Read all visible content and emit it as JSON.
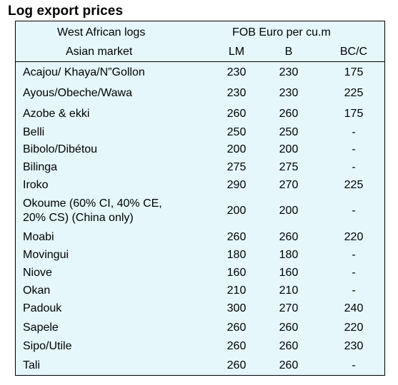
{
  "title": "Log export prices",
  "header": {
    "left_line1": "West African logs",
    "left_line2": "Asian market",
    "right_line1": "FOB Euro per cu.m",
    "col_lm": "LM",
    "col_b": "B",
    "col_bcc": "BC/C"
  },
  "rows": [
    {
      "name": "Acajou/ Khaya/N”Gollon",
      "lm": "230",
      "b": "230",
      "bcc": "175"
    },
    {
      "name": "Ayous/Obeche/Wawa",
      "lm": "230",
      "b": "230",
      "bcc": "225"
    },
    {
      "name": "Azobe & ekki",
      "lm": "260",
      "b": "260",
      "bcc": "175"
    },
    {
      "name": "Belli",
      "lm": "250",
      "b": "250",
      "bcc": "-"
    },
    {
      "name": "Bibolo/Dibétou",
      "lm": "200",
      "b": "200",
      "bcc": "-"
    },
    {
      "name": "Bilinga",
      "lm": "275",
      "b": "275",
      "bcc": "-"
    },
    {
      "name": "Iroko",
      "lm": "290",
      "b": "270",
      "bcc": "225"
    },
    {
      "name_line1": "Okoume (60% CI, 40% CE,",
      "name_line2": "20% CS) (China only)",
      "lm": "200",
      "b": "200",
      "bcc": "-"
    },
    {
      "name": "Moabi",
      "lm": "260",
      "b": "260",
      "bcc": "220"
    },
    {
      "name": "Movingui",
      "lm": "180",
      "b": "180",
      "bcc": "-"
    },
    {
      "name": "Niove",
      "lm": "160",
      "b": "160",
      "bcc": "-"
    },
    {
      "name": "Okan",
      "lm": "210",
      "b": "210",
      "bcc": "-"
    },
    {
      "name": "Padouk",
      "lm": "300",
      "b": "270",
      "bcc": "240"
    },
    {
      "name": "Sapele",
      "lm": "260",
      "b": "260",
      "bcc": "220"
    },
    {
      "name": "Sipo/Utile",
      "lm": "260",
      "b": "260",
      "bcc": "230"
    },
    {
      "name": "Tali",
      "lm": "260",
      "b": "260",
      "bcc": "-"
    }
  ]
}
